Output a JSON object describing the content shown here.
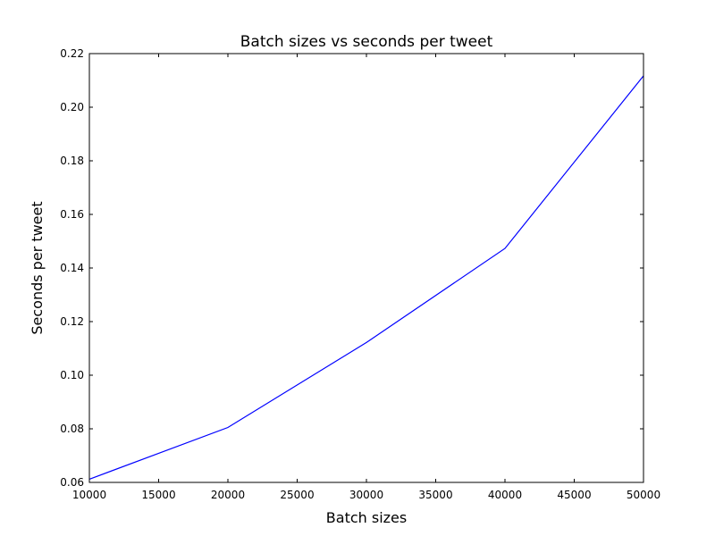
{
  "chart_data": {
    "type": "line",
    "title": "Batch sizes vs seconds per tweet",
    "xlabel": "Batch sizes",
    "ylabel": "Seconds per tweet",
    "xlim": [
      10000,
      50000
    ],
    "ylim": [
      0.06,
      0.22
    ],
    "x_ticks": [
      "10000",
      "15000",
      "20000",
      "25000",
      "30000",
      "35000",
      "40000",
      "45000",
      "50000"
    ],
    "y_ticks": [
      "0.06",
      "0.08",
      "0.10",
      "0.12",
      "0.14",
      "0.16",
      "0.18",
      "0.20",
      "0.22"
    ],
    "grid": false,
    "legend": "none",
    "series": [
      {
        "color": "#0000ff",
        "x": [
          10000,
          20000,
          30000,
          40000,
          50000
        ],
        "y": [
          0.0612,
          0.0805,
          0.1122,
          0.1473,
          0.2117
        ]
      }
    ]
  }
}
